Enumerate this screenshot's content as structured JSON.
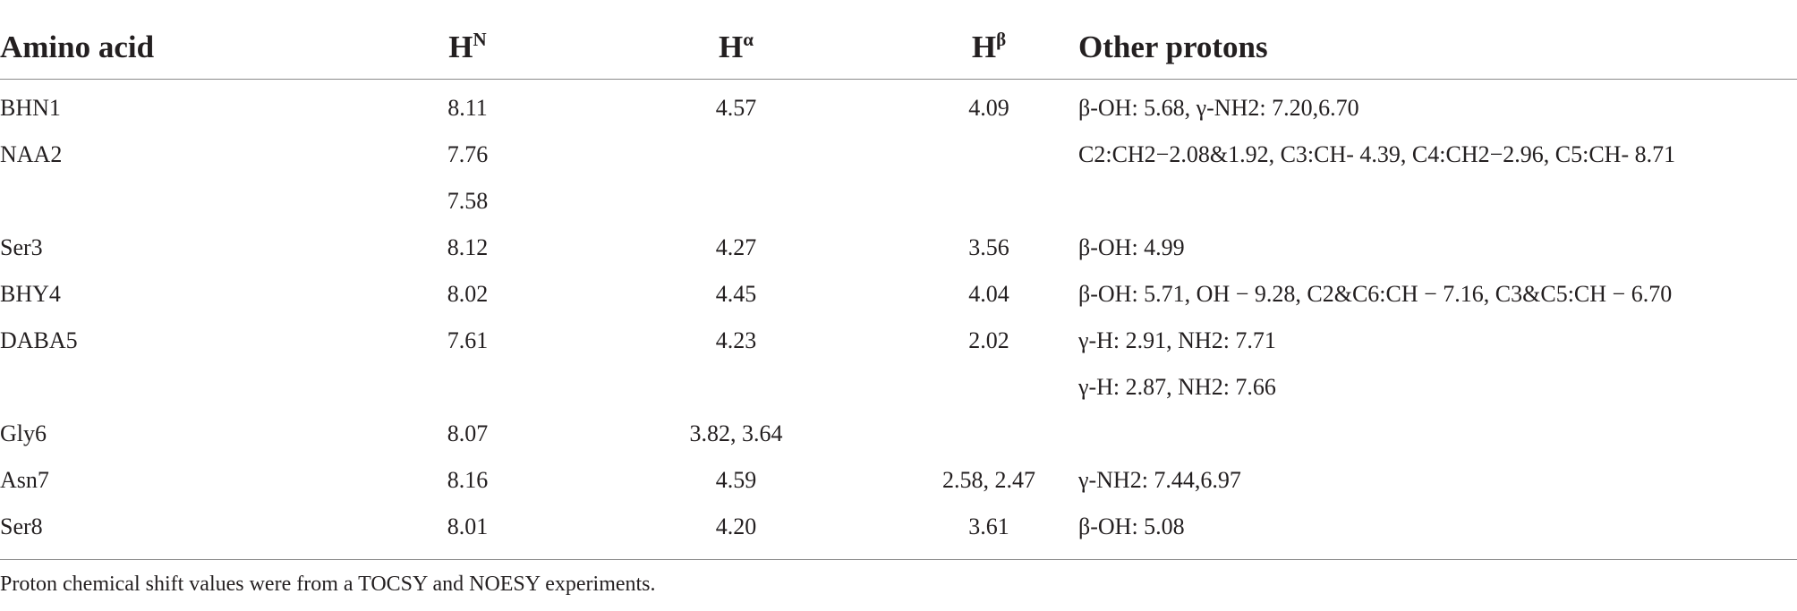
{
  "table": {
    "headers": [
      {
        "base": "Amino acid",
        "sup": ""
      },
      {
        "base": "H",
        "sup": "N"
      },
      {
        "base": "H",
        "sup": "α"
      },
      {
        "base": "H",
        "sup": "β"
      },
      {
        "base": "Other protons",
        "sup": ""
      }
    ],
    "rows": [
      [
        "BHN1",
        "8.11",
        "4.57",
        "4.09",
        "β-OH: 5.68, γ-NH2: 7.20,6.70"
      ],
      [
        "NAA2",
        "7.76",
        "",
        "",
        "C2:CH2−2.08&1.92, C3:CH- 4.39, C4:CH2−2.96, C5:CH- 8.71"
      ],
      [
        "",
        "7.58",
        "",
        "",
        ""
      ],
      [
        "Ser3",
        "8.12",
        "4.27",
        "3.56",
        "β-OH: 4.99"
      ],
      [
        "BHY4",
        "8.02",
        "4.45",
        "4.04",
        "β-OH: 5.71, OH − 9.28, C2&C6:CH − 7.16, C3&C5:CH − 6.70"
      ],
      [
        "DABA5",
        "7.61",
        "4.23",
        "2.02",
        "γ-H: 2.91, NH2: 7.71"
      ],
      [
        "",
        "",
        "",
        "",
        "γ-H: 2.87, NH2: 7.66"
      ],
      [
        "Gly6",
        "8.07",
        "3.82, 3.64",
        "",
        ""
      ],
      [
        "Asn7",
        "8.16",
        "4.59",
        "2.58, 2.47",
        "γ-NH2: 7.44,6.97"
      ],
      [
        "Ser8",
        "8.01",
        "4.20",
        "3.61",
        "β-OH: 5.08"
      ]
    ]
  },
  "footnote": "Proton chemical shift values were from a TOCSY and NOESY experiments."
}
